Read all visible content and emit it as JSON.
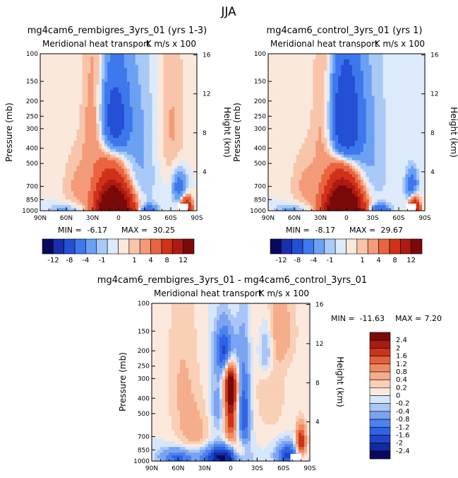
{
  "main_title": "JJA",
  "colors": {
    "div12": [
      "#08085e",
      "#1a2fae",
      "#2450d6",
      "#3d78ec",
      "#6ba0f3",
      "#a9c9f7",
      "#ddeafb",
      "#fbe8dc",
      "#f8c5ab",
      "#f39b78",
      "#e9643f",
      "#cf3119",
      "#ad1a12",
      "#7a0a0a"
    ],
    "div14": [
      "#08085e",
      "#122aa0",
      "#1f44cc",
      "#2f63e4",
      "#4c82ee",
      "#7aa3f2",
      "#a9c6f6",
      "#d6e6fb",
      "#fbe9dd",
      "#f9cfb6",
      "#f5ae8c",
      "#ef8a63",
      "#e4603d",
      "#c93419",
      "#a61b12",
      "#7a0a0a"
    ]
  },
  "chart_data": [
    {
      "type": "heatmap",
      "panel_title": "mg4cam6_rembigres_3yrs_01 (yrs 1-3)",
      "subtitle": "Meridional heat transport",
      "units": "K m/s x 100",
      "ylabel": "Pressure (mb)",
      "ylabel_right": "Height (km)",
      "x_ticks": [
        "90N",
        "60N",
        "30N",
        "0",
        "30S",
        "60S",
        "90S"
      ],
      "y_ticks": [
        "100",
        "150",
        "200",
        "250",
        "300",
        "400",
        "500",
        "700",
        "850",
        "1000"
      ],
      "y2_ticks": [
        "16",
        "12",
        "8",
        "4"
      ],
      "min_label": "MIN =",
      "min": "-6.17",
      "max_label": "MAX =",
      "max": "30.25",
      "colorbar_ticks": [
        "-12",
        "-8",
        "-4",
        "-1",
        "1",
        "4",
        "8",
        "12"
      ],
      "features": [
        {
          "lat": 5,
          "p": 1000,
          "value": 30.25,
          "sx": 12,
          "sp": 180
        },
        {
          "lat": 8,
          "p": 700,
          "value": 5,
          "sx": 12,
          "sp": 250
        },
        {
          "lat": 5,
          "p": 270,
          "value": -6.17,
          "sx": 11,
          "sp": 120
        },
        {
          "lat": -78,
          "p": 1000,
          "value": 12,
          "sx": 4,
          "sp": 110
        },
        {
          "lat": -70,
          "p": 700,
          "value": -3,
          "sx": 6,
          "sp": 120
        },
        {
          "lat": -35,
          "p": 1000,
          "value": -3,
          "sx": 7,
          "sp": 60
        },
        {
          "lat": 60,
          "p": 980,
          "value": -1.5,
          "sx": 14,
          "sp": 60
        },
        {
          "lat": 28,
          "p": 250,
          "value": 1.5,
          "sx": 9,
          "sp": 200
        },
        {
          "lat": 45,
          "p": 700,
          "value": 1.2,
          "sx": 14,
          "sp": 250
        },
        {
          "lat": -20,
          "p": 450,
          "value": -1.2,
          "sx": 20,
          "sp": 400
        },
        {
          "lat": -60,
          "p": 300,
          "value": 1.2,
          "sx": 12,
          "sp": 250
        }
      ]
    },
    {
      "type": "heatmap",
      "panel_title": "mg4cam6_control_3yrs_01 (yrs 1)",
      "subtitle": "Meridional heat transport",
      "units": "K m/s x 100",
      "ylabel": "Pressure (mb)",
      "ylabel_right": "Height (km)",
      "x_ticks": [
        "90N",
        "60N",
        "30N",
        "0",
        "30S",
        "60S",
        "90S"
      ],
      "y_ticks": [
        "100",
        "150",
        "200",
        "250",
        "300",
        "400",
        "500",
        "700",
        "850",
        "1000"
      ],
      "y2_ticks": [
        "16",
        "12",
        "8",
        "4"
      ],
      "min_label": "MIN =",
      "min": "-8.17",
      "max_label": "MAX =",
      "max": "29.67",
      "colorbar_ticks": [
        "-12",
        "-8",
        "-4",
        "-1",
        "1",
        "4",
        "8",
        "12"
      ],
      "features": [
        {
          "lat": 3,
          "p": 1000,
          "value": 29.67,
          "sx": 13,
          "sp": 190
        },
        {
          "lat": 5,
          "p": 700,
          "value": 5,
          "sx": 12,
          "sp": 250
        },
        {
          "lat": 2,
          "p": 280,
          "value": -8.17,
          "sx": 12,
          "sp": 140
        },
        {
          "lat": -78,
          "p": 1000,
          "value": 12,
          "sx": 4,
          "sp": 110
        },
        {
          "lat": -75,
          "p": 700,
          "value": -3,
          "sx": 5,
          "sp": 120
        },
        {
          "lat": -38,
          "p": 1000,
          "value": -4,
          "sx": 8,
          "sp": 60
        },
        {
          "lat": 62,
          "p": 980,
          "value": -1.5,
          "sx": 14,
          "sp": 60
        },
        {
          "lat": 25,
          "p": 240,
          "value": 1.5,
          "sx": 9,
          "sp": 200
        },
        {
          "lat": 45,
          "p": 700,
          "value": 1.2,
          "sx": 14,
          "sp": 250
        },
        {
          "lat": -20,
          "p": 450,
          "value": -1.2,
          "sx": 20,
          "sp": 400
        }
      ]
    },
    {
      "type": "heatmap",
      "panel_title": "mg4cam6_rembigres_3yrs_01 - mg4cam6_control_3yrs_01",
      "subtitle": "Meridional heat transport",
      "units": "K m/s x 100",
      "ylabel": "Pressure (mb)",
      "ylabel_right": "Height (km)",
      "x_ticks": [
        "90N",
        "60N",
        "30N",
        "0",
        "30S",
        "60S",
        "90S"
      ],
      "y_ticks": [
        "100",
        "150",
        "200",
        "250",
        "300",
        "400",
        "500",
        "700",
        "850",
        "1000"
      ],
      "y2_ticks": [
        "16",
        "12",
        "8",
        "4"
      ],
      "min_label": "MIN =",
      "min": "-11.63",
      "max_label": "MAX =",
      "max": "7.20",
      "colorbar_ticks": [
        "2.4",
        "2",
        "1.6",
        "1.2",
        "0.8",
        "0.4",
        "0.2",
        "0",
        "-0.2",
        "-0.4",
        "-0.8",
        "-1.2",
        "-1.6",
        "-2",
        "-2.4"
      ],
      "features": [
        {
          "lat": 0,
          "p": 330,
          "value": 2.6,
          "sx": 5,
          "sp": 90
        },
        {
          "lat": 0,
          "p": 550,
          "value": 1.8,
          "sx": 5,
          "sp": 150
        },
        {
          "lat": 5,
          "p": 200,
          "value": -2,
          "sx": 8,
          "sp": 50
        },
        {
          "lat": -15,
          "p": 500,
          "value": -1.6,
          "sx": 5,
          "sp": 220
        },
        {
          "lat": 15,
          "p": 450,
          "value": -0.6,
          "sx": 6,
          "sp": 150
        },
        {
          "lat": 10,
          "p": 950,
          "value": -2.6,
          "sx": 16,
          "sp": 110
        },
        {
          "lat": -10,
          "p": 880,
          "value": 1.2,
          "sx": 6,
          "sp": 100
        },
        {
          "lat": -80,
          "p": 750,
          "value": 2.2,
          "sx": 4,
          "sp": 120
        },
        {
          "lat": -65,
          "p": 920,
          "value": -1.8,
          "sx": 9,
          "sp": 110
        },
        {
          "lat": 60,
          "p": 950,
          "value": -1.4,
          "sx": 14,
          "sp": 90
        },
        {
          "lat": 40,
          "p": 700,
          "value": 0.5,
          "sx": 14,
          "sp": 200
        },
        {
          "lat": 55,
          "p": 300,
          "value": 0.4,
          "sx": 14,
          "sp": 250
        },
        {
          "lat": -45,
          "p": 300,
          "value": 0.4,
          "sx": 14,
          "sp": 250
        },
        {
          "lat": -40,
          "p": 200,
          "value": -0.8,
          "sx": 6,
          "sp": 60
        },
        {
          "lat": -60,
          "p": 150,
          "value": 0.4,
          "sx": 12,
          "sp": 60
        }
      ]
    }
  ]
}
